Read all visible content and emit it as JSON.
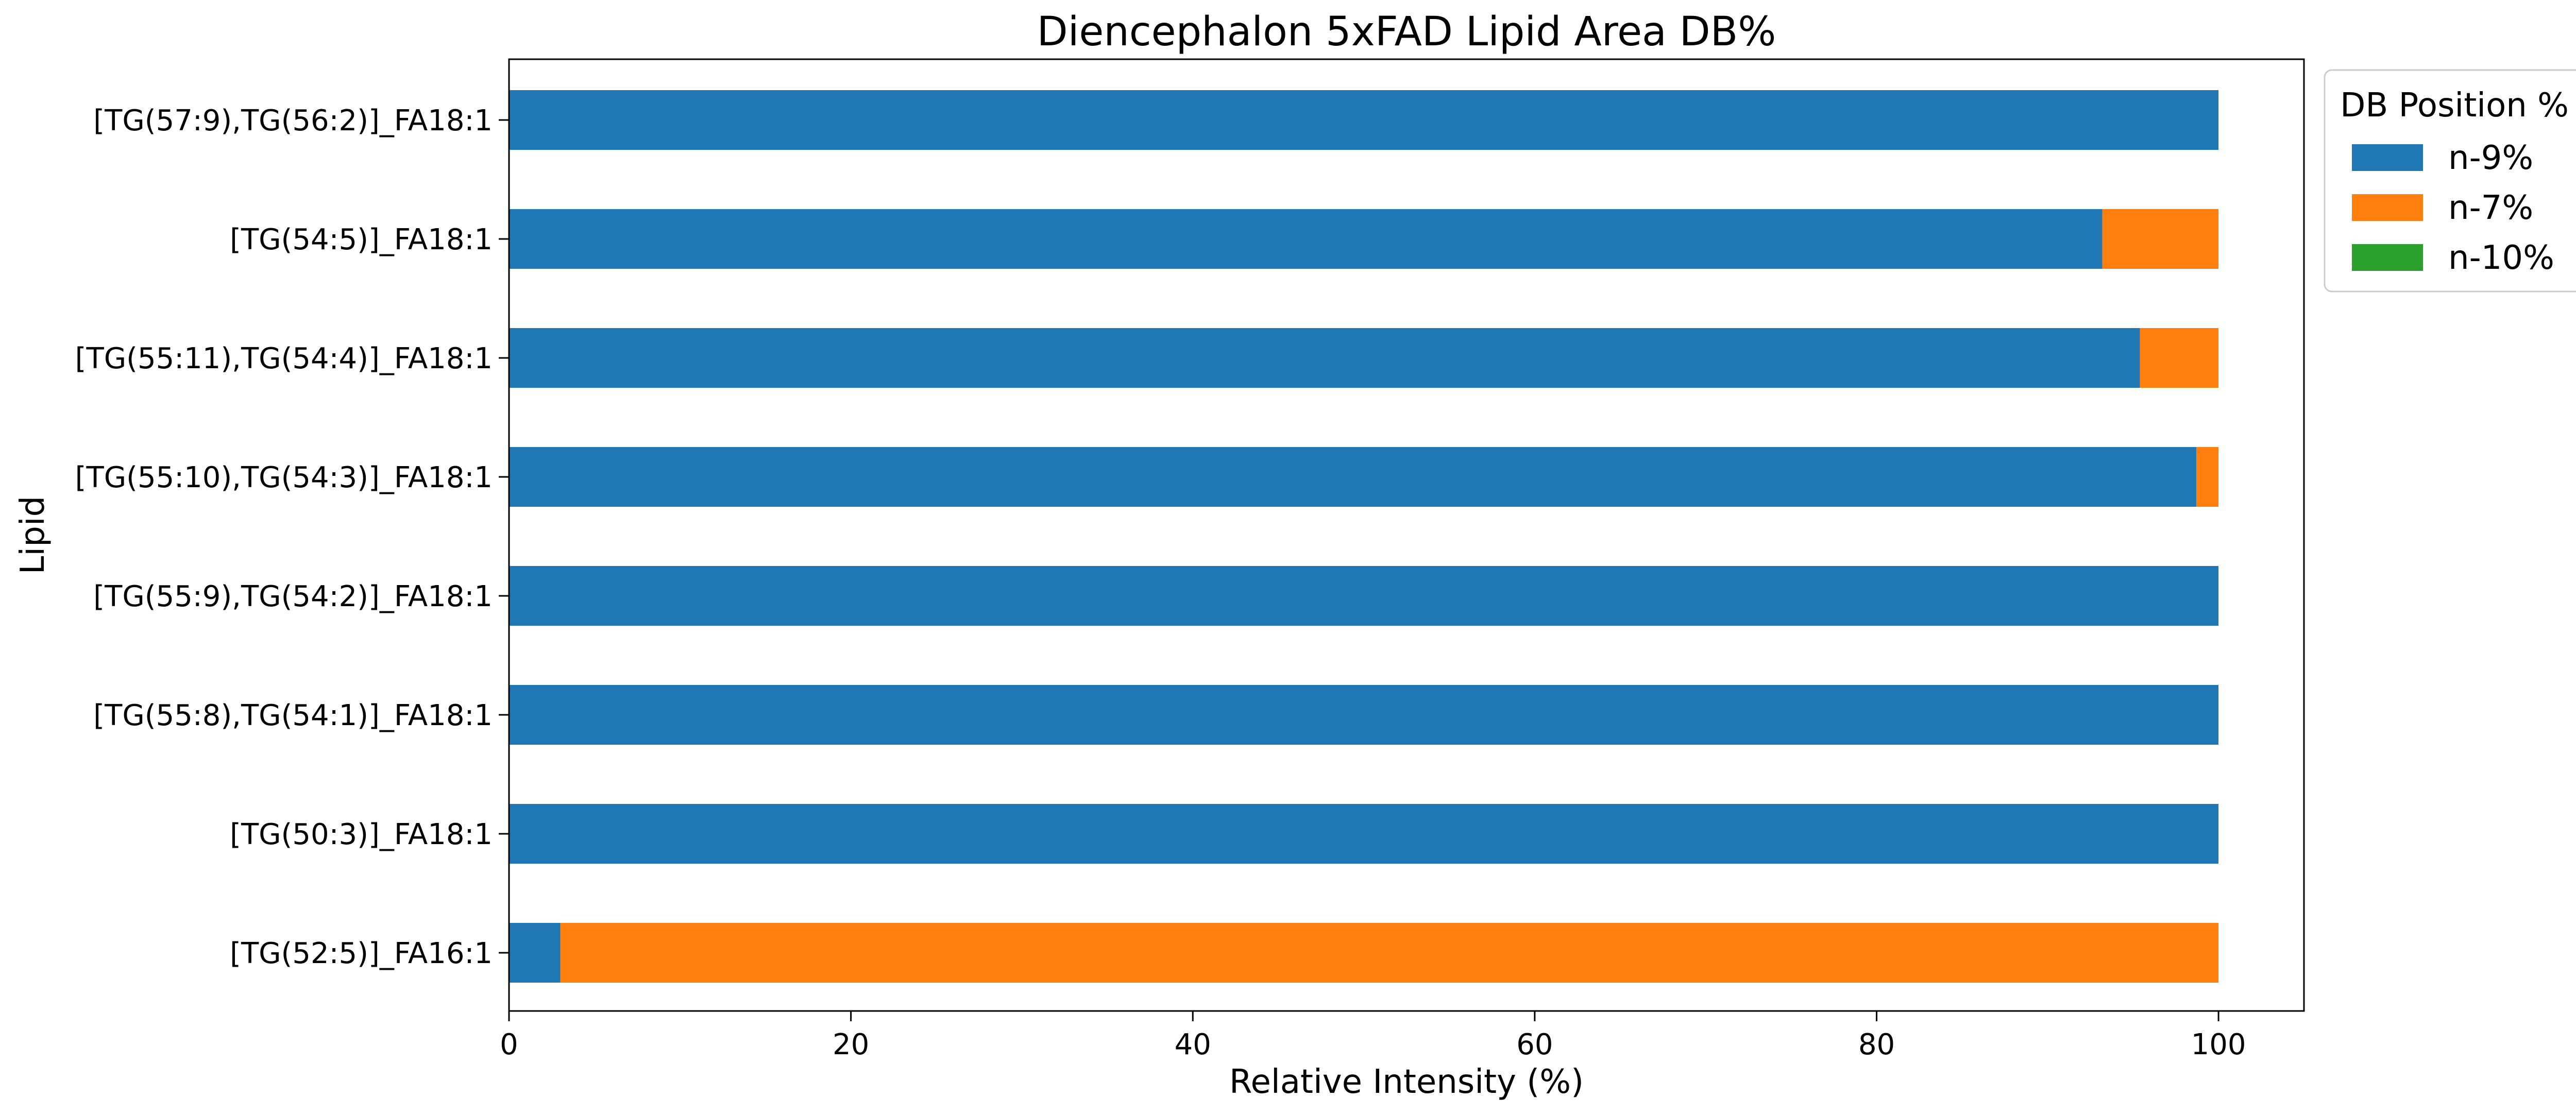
{
  "chart_data": {
    "type": "bar",
    "orientation": "horizontal",
    "stacked": true,
    "title": "Diencephalon 5xFAD Lipid Area DB%",
    "xlabel": "Relative Intensity (%)",
    "ylabel": "Lipid",
    "xlim": [
      0,
      105
    ],
    "xticks": [
      0,
      20,
      40,
      60,
      80,
      100
    ],
    "grid": false,
    "legend": {
      "title": "DB Position %",
      "placement": "outside-top-right"
    },
    "categories": [
      "[TG(57:9),TG(56:2)]_FA18:1",
      "[TG(54:5)]_FA18:1",
      "[TG(55:11),TG(54:4)]_FA18:1",
      "[TG(55:10),TG(54:3)]_FA18:1",
      "[TG(55:9),TG(54:2)]_FA18:1",
      "[TG(55:8),TG(54:1)]_FA18:1",
      "[TG(50:3)]_FA18:1",
      "[TG(52:5)]_FA16:1"
    ],
    "series": [
      {
        "name": "n-9%",
        "color": "#1f77b4",
        "values": [
          100,
          93.2,
          95.4,
          98.7,
          100,
          100,
          100,
          3.0
        ]
      },
      {
        "name": "n-7%",
        "color": "#ff7f0e",
        "values": [
          0,
          6.8,
          4.6,
          1.3,
          0,
          0,
          0,
          97.0
        ]
      },
      {
        "name": "n-10%",
        "color": "#2ca02c",
        "values": [
          0,
          0,
          0,
          0,
          0,
          0,
          0,
          0
        ]
      }
    ]
  }
}
